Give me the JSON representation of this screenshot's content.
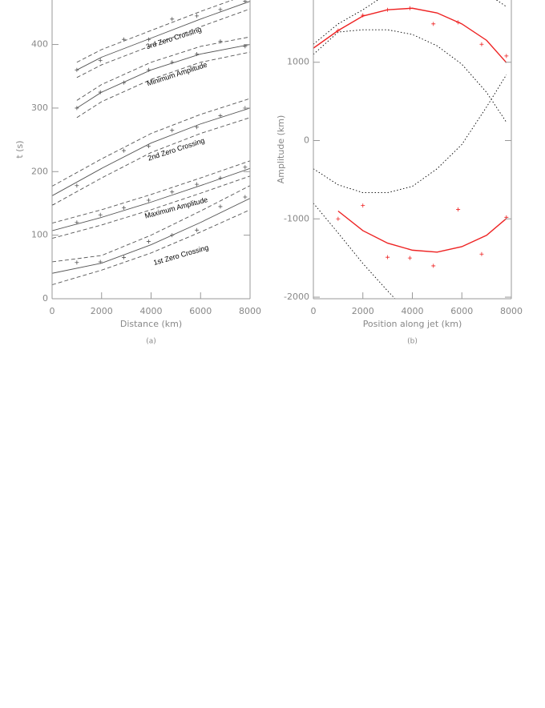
{
  "chart_data": [
    {
      "type": "line",
      "xlabel": "Distance (km)",
      "ylabel": "t (s)",
      "caption": "(a)",
      "xlim": [
        0,
        8000
      ],
      "ylim": [
        0,
        470
      ],
      "xticks": [
        0,
        2000,
        4000,
        6000,
        8000
      ],
      "yticks": [
        0,
        100,
        200,
        300,
        400
      ],
      "annotations": [
        "3rd Zero Crossing",
        "Minimum Amplitude",
        "2nd Zero Crossing",
        "Maximum Amplitude",
        "1st Zero Crossing"
      ],
      "series": [
        {
          "color": "#555555",
          "style": "solid",
          "x": [
            0,
            2000,
            4000,
            6000,
            8000
          ],
          "values": [
            40,
            56,
            85,
            120,
            158
          ]
        },
        {
          "color": "#555555",
          "style": "dashed",
          "x": [
            0,
            2000,
            4000,
            6000,
            8000
          ],
          "values": [
            58,
            68,
            100,
            138,
            178
          ]
        },
        {
          "color": "#555555",
          "style": "dashed",
          "x": [
            0,
            2000,
            4000,
            6000,
            8000
          ],
          "values": [
            22,
            45,
            72,
            105,
            140
          ]
        },
        {
          "color": "#555555",
          "style": "marker",
          "x": [
            1000,
            1950,
            2900,
            3900,
            4850,
            5850,
            6800,
            7800
          ],
          "values": [
            57,
            58,
            65,
            90,
            100,
            108,
            145,
            160
          ]
        },
        {
          "color": "#555555",
          "style": "solid",
          "x": [
            0,
            2000,
            4000,
            6000,
            8000
          ],
          "values": [
            107,
            128,
            152,
            178,
            205
          ]
        },
        {
          "color": "#555555",
          "style": "dashed",
          "x": [
            0,
            2000,
            4000,
            6000,
            8000
          ],
          "values": [
            119,
            140,
            164,
            190,
            217
          ]
        },
        {
          "color": "#555555",
          "style": "dashed",
          "x": [
            0,
            2000,
            4000,
            6000,
            8000
          ],
          "values": [
            95,
            116,
            140,
            166,
            193
          ]
        },
        {
          "color": "#555555",
          "style": "marker",
          "x": [
            1000,
            1950,
            2900,
            3900,
            4850,
            5850,
            6800,
            7800
          ],
          "values": [
            120,
            132,
            143,
            155,
            168,
            180,
            190,
            207
          ]
        },
        {
          "color": "#555555",
          "style": "solid",
          "x": [
            0,
            2000,
            4000,
            6000,
            8000
          ],
          "values": [
            162,
            205,
            245,
            275,
            300
          ]
        },
        {
          "color": "#555555",
          "style": "dashed",
          "x": [
            0,
            2000,
            4000,
            6000,
            8000
          ],
          "values": [
            177,
            220,
            260,
            290,
            315
          ]
        },
        {
          "color": "#555555",
          "style": "dashed",
          "x": [
            0,
            2000,
            4000,
            6000,
            8000
          ],
          "values": [
            147,
            190,
            230,
            260,
            285
          ]
        },
        {
          "color": "#555555",
          "style": "marker",
          "x": [
            0,
            1000,
            2900,
            3900,
            4850,
            5850,
            6800,
            7800
          ],
          "values": [
            148,
            178,
            233,
            240,
            265,
            270,
            288,
            300
          ]
        },
        {
          "color": "#555555",
          "style": "solid",
          "x": [
            1000,
            2000,
            4000,
            6000,
            8000
          ],
          "values": [
            300,
            325,
            360,
            385,
            400
          ]
        },
        {
          "color": "#555555",
          "style": "dashed",
          "x": [
            1000,
            2000,
            4000,
            6000,
            8000
          ],
          "values": [
            312,
            337,
            372,
            397,
            412
          ]
        },
        {
          "color": "#555555",
          "style": "dashed",
          "x": [
            1000,
            2000,
            4000,
            6000,
            8000
          ],
          "values": [
            285,
            310,
            345,
            372,
            388
          ]
        },
        {
          "color": "#555555",
          "style": "marker",
          "x": [
            1000,
            1950,
            2900,
            3900,
            4850,
            5850,
            6800,
            7800
          ],
          "values": [
            300,
            325,
            340,
            360,
            372,
            385,
            405,
            397
          ]
        },
        {
          "color": "#555555",
          "style": "solid",
          "x": [
            1000,
            2000,
            4000,
            6000,
            8000
          ],
          "values": [
            360,
            380,
            410,
            440,
            468
          ]
        },
        {
          "color": "#555555",
          "style": "dashed",
          "x": [
            1000,
            2000,
            4000,
            6000,
            8000
          ],
          "values": [
            372,
            392,
            422,
            452,
            480
          ]
        },
        {
          "color": "#555555",
          "style": "dashed",
          "x": [
            1000,
            2000,
            4000,
            6000,
            8000
          ],
          "values": [
            348,
            368,
            398,
            428,
            456
          ]
        },
        {
          "color": "#555555",
          "style": "marker",
          "x": [
            1000,
            1950,
            2900,
            3900,
            4850,
            5850,
            6800,
            7800
          ],
          "values": [
            360,
            375,
            408,
            408,
            440,
            445,
            455,
            468
          ]
        }
      ]
    },
    {
      "type": "line",
      "xlabel": "Position along jet (km)",
      "ylabel": "Amplitude (km)",
      "caption": "(b)",
      "xlim": [
        0,
        8000
      ],
      "ylim": [
        -2020,
        1795
      ],
      "xticks": [
        0,
        2000,
        4000,
        6000,
        8000
      ],
      "yticks": [
        -2000,
        -1000,
        0,
        1000
      ],
      "annotations": [],
      "series": [
        {
          "color": "#000000",
          "style": "dotted",
          "x": [
            0,
            1000,
            2000,
            2600,
            5000,
            7400,
            7800
          ],
          "values": [
            1230,
            1490,
            1670,
            1795,
            null,
            1795,
            1710
          ]
        },
        {
          "color": "#000000",
          "style": "dotted",
          "x": [
            0,
            1000,
            2000,
            3000,
            4000,
            5000,
            6000,
            7000,
            7800
          ],
          "values": [
            1100,
            1385,
            1415,
            1415,
            1355,
            1210,
            975,
            615,
            235
          ]
        },
        {
          "color": "#000000",
          "style": "dotted",
          "x": [
            0,
            1000,
            2000,
            3000,
            4000,
            5000,
            6000,
            7000,
            7800
          ],
          "values": [
            -360,
            -565,
            -665,
            -665,
            -585,
            -360,
            -50,
            430,
            840
          ]
        },
        {
          "color": "#000000",
          "style": "dotted",
          "x": [
            0,
            1000,
            2000,
            3000,
            3300
          ],
          "values": [
            -800,
            -1180,
            -1570,
            -1920,
            -2020
          ]
        },
        {
          "color": "#ee2222",
          "style": "solid",
          "x": [
            0,
            1000,
            2000,
            3000,
            4000,
            5000,
            6000,
            7000,
            7800
          ],
          "values": [
            1180,
            1405,
            1590,
            1670,
            1690,
            1630,
            1490,
            1280,
            995
          ]
        },
        {
          "color": "#ee2222",
          "style": "solid",
          "x": [
            1000,
            2000,
            3000,
            4000,
            5000,
            6000,
            7000,
            7800
          ],
          "values": [
            -900,
            -1150,
            -1310,
            -1400,
            -1425,
            -1355,
            -1210,
            -995
          ]
        },
        {
          "color": "#ee2222",
          "style": "marker",
          "x": [
            1000,
            2000,
            3000,
            3900,
            4850,
            5850,
            6800,
            7800
          ],
          "values": [
            1405,
            1600,
            1670,
            1690,
            1490,
            1510,
            1230,
            1080
          ]
        },
        {
          "color": "#ee2222",
          "style": "marker",
          "x": [
            1000,
            2000,
            3000,
            3900,
            4850,
            5850,
            6800,
            7800
          ],
          "values": [
            -1000,
            -830,
            -1490,
            -1500,
            -1600,
            -880,
            -1450,
            -980
          ]
        }
      ]
    }
  ]
}
